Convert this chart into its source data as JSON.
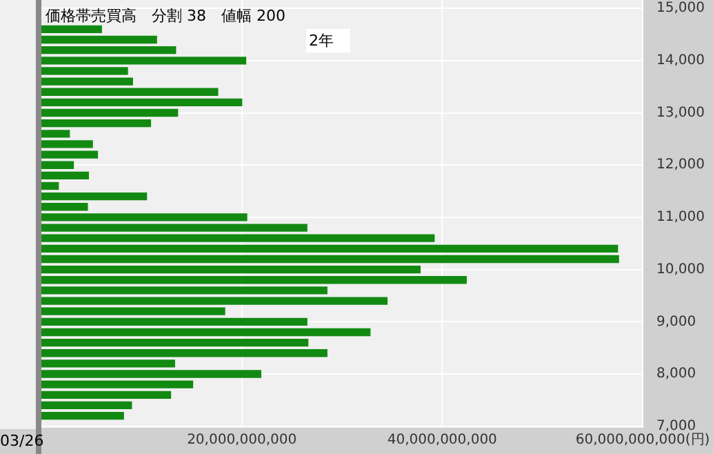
{
  "chart_data": {
    "type": "bar",
    "orientation": "horizontal",
    "title": "価格帯売買高　分割 38　値幅 200",
    "x": [
      14600,
      14400,
      14200,
      14000,
      13800,
      13600,
      13400,
      13200,
      13000,
      12800,
      12600,
      12400,
      12200,
      12000,
      11800,
      11600,
      11400,
      11200,
      11000,
      10800,
      10600,
      10400,
      10200,
      10000,
      9800,
      9600,
      9400,
      9200,
      9000,
      8800,
      8600,
      8400,
      8200,
      8000,
      7800,
      7600,
      7400,
      7200
    ],
    "values": [
      6000000000,
      11500000000,
      13400000000,
      20400000000,
      8600000000,
      9100000000,
      17600000000,
      20000000000,
      13600000000,
      10900000000,
      2800000000,
      5100000000,
      5600000000,
      3200000000,
      4700000000,
      1700000000,
      10500000000,
      4600000000,
      20500000000,
      26500000000,
      39200000000,
      57500000000,
      57600000000,
      37800000000,
      42400000000,
      28500000000,
      34500000000,
      18300000000,
      26500000000,
      32800000000,
      26600000000,
      28500000000,
      13300000000,
      21900000000,
      15100000000,
      12900000000,
      9000000000,
      8200000000
    ],
    "color": "#128a12",
    "xlim": [
      0,
      60000000000
    ],
    "xticks": [
      {
        "value": 20000000000,
        "label": "20,000,000,000"
      },
      {
        "value": 40000000000,
        "label": "40,000,000,000"
      },
      {
        "value": 60000000000,
        "label": "60,000,000,000(円)"
      }
    ],
    "ylim": [
      6970,
      15160
    ],
    "yticks": [
      {
        "value": 7000,
        "label": "7,000"
      },
      {
        "value": 8000,
        "label": "8,000"
      },
      {
        "value": 9000,
        "label": "9,000"
      },
      {
        "value": 10000,
        "label": "10,000"
      },
      {
        "value": 11000,
        "label": "11,000"
      },
      {
        "value": 12000,
        "label": "12,000"
      },
      {
        "value": 13000,
        "label": "13,000"
      },
      {
        "value": 14000,
        "label": "14,000"
      },
      {
        "value": 15000,
        "label": "15,000"
      }
    ],
    "grid": true,
    "legend": false,
    "annotations": [
      "2年",
      "03/26"
    ]
  }
}
